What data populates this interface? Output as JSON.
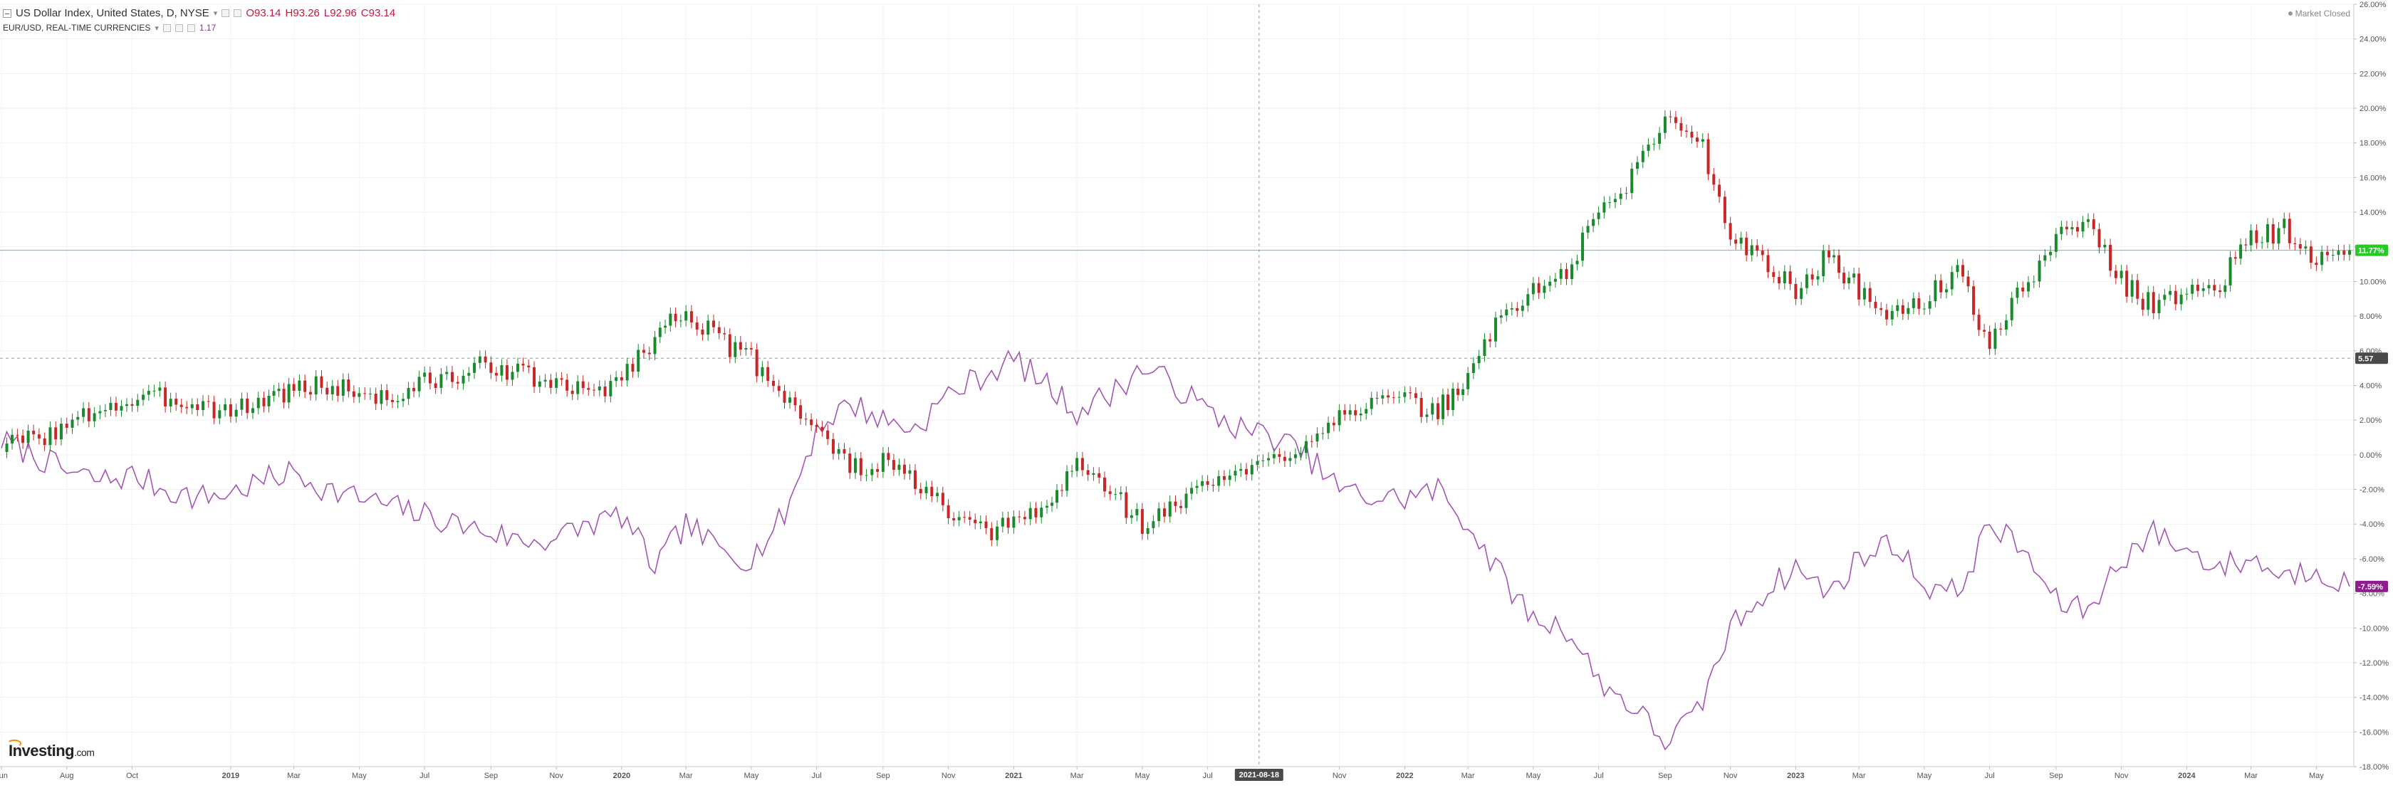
{
  "legend": {
    "main_title": "US Dollar Index, United States, D, NYSE",
    "open_label": "O93.14",
    "high_label": "H93.26",
    "low_label": "L92.96",
    "close_label": "C93.14",
    "second_title": "EUR/USD, REAL-TIME CURRENCIES",
    "second_value": "1.17"
  },
  "status": {
    "market_closed": "Market Closed"
  },
  "branding": {
    "logo_main": "Investing",
    "logo_suffix": ".com"
  },
  "crosshair": {
    "date_label": "2021-08-18",
    "price_label": "5.57"
  },
  "colors": {
    "up_candle": "#1b8a2e",
    "down_candle": "#c62828",
    "eur_line": "#a157b3",
    "last_price_line": "#4cd964",
    "last_price_badge": "#22cc22",
    "eur_badge": "#8e1e8e",
    "crosshair_badge": "#4a4a4a"
  },
  "chart_data": {
    "type": "line",
    "title": "US Dollar Index, United States, D, NYSE",
    "y_axis": {
      "min": -18,
      "max": 26,
      "step": 2,
      "unit": "%",
      "position": "right"
    },
    "x_tick_labels": [
      "Jun",
      "Aug",
      "Oct",
      "2019",
      "Mar",
      "May",
      "Jul",
      "Sep",
      "Nov",
      "2020",
      "Mar",
      "May",
      "Jul",
      "Sep",
      "Nov",
      "2021",
      "Mar",
      "May",
      "Jul",
      "2021-08-18",
      "Nov",
      "2022",
      "Mar",
      "May",
      "Jul",
      "Sep",
      "Nov",
      "2023",
      "Mar",
      "May",
      "Jul",
      "Sep",
      "Nov",
      "2024",
      "Mar",
      "May"
    ],
    "x_range": [
      "2018-06",
      "2024-06"
    ],
    "grid": true,
    "markers": {
      "dxy_last": "11.77%",
      "eur_last": "-7.59%",
      "crosshair_y": 5.57
    },
    "series": [
      {
        "name": "US Dollar Index",
        "style": "candlestick",
        "x": [
          "2018-06",
          "2018-07",
          "2018-08",
          "2018-09",
          "2018-10",
          "2018-11",
          "2018-12",
          "2019-01",
          "2019-02",
          "2019-03",
          "2019-04",
          "2019-05",
          "2019-06",
          "2019-07",
          "2019-08",
          "2019-09",
          "2019-10",
          "2019-11",
          "2019-12",
          "2020-01",
          "2020-02",
          "2020-03",
          "2020-04",
          "2020-05",
          "2020-06",
          "2020-07",
          "2020-08",
          "2020-09",
          "2020-10",
          "2020-11",
          "2020-12",
          "2021-01",
          "2021-02",
          "2021-03",
          "2021-04",
          "2021-05",
          "2021-06",
          "2021-07",
          "2021-08",
          "2021-09",
          "2021-10",
          "2021-11",
          "2021-12",
          "2022-01",
          "2022-02",
          "2022-03",
          "2022-04",
          "2022-05",
          "2022-06",
          "2022-07",
          "2022-08",
          "2022-09",
          "2022-10",
          "2022-11",
          "2022-12",
          "2023-01",
          "2023-02",
          "2023-03",
          "2023-04",
          "2023-05",
          "2023-06",
          "2023-07",
          "2023-08",
          "2023-09",
          "2023-10",
          "2023-11",
          "2023-12",
          "2024-01",
          "2024-02",
          "2024-03",
          "2024-04",
          "2024-05",
          "2024-06"
        ],
        "values": [
          0.5,
          1.0,
          1.5,
          2.8,
          3.0,
          3.3,
          3.0,
          2.5,
          3.2,
          3.8,
          4.0,
          3.6,
          3.2,
          4.2,
          4.5,
          5.3,
          4.6,
          4.0,
          3.5,
          4.5,
          6.8,
          8.5,
          6.5,
          5.5,
          3.5,
          1.5,
          -0.8,
          -0.5,
          -1.5,
          -3.5,
          -4.5,
          -4.0,
          -3.0,
          -0.5,
          -2.0,
          -4.0,
          -3.0,
          -1.5,
          -1.2,
          -0.3,
          0.8,
          2.5,
          3.0,
          3.0,
          2.5,
          4.5,
          8.0,
          9.5,
          10.5,
          14.0,
          16.0,
          19.5,
          18.5,
          13.0,
          11.0,
          9.5,
          11.5,
          9.5,
          8.0,
          9.0,
          10.5,
          6.5,
          9.5,
          12.5,
          13.5,
          10.0,
          8.5,
          9.5,
          10.0,
          12.5,
          13.0,
          11.0,
          11.8
        ]
      },
      {
        "name": "EUR/USD",
        "style": "line",
        "x": [
          "2018-06",
          "2018-07",
          "2018-08",
          "2018-09",
          "2018-10",
          "2018-11",
          "2018-12",
          "2019-01",
          "2019-02",
          "2019-03",
          "2019-04",
          "2019-05",
          "2019-06",
          "2019-07",
          "2019-08",
          "2019-09",
          "2019-10",
          "2019-11",
          "2019-12",
          "2020-01",
          "2020-02",
          "2020-03",
          "2020-04",
          "2020-05",
          "2020-06",
          "2020-07",
          "2020-08",
          "2020-09",
          "2020-10",
          "2020-11",
          "2020-12",
          "2021-01",
          "2021-02",
          "2021-03",
          "2021-04",
          "2021-05",
          "2021-06",
          "2021-07",
          "2021-08",
          "2021-09",
          "2021-10",
          "2021-11",
          "2021-12",
          "2022-01",
          "2022-02",
          "2022-03",
          "2022-04",
          "2022-05",
          "2022-06",
          "2022-07",
          "2022-08",
          "2022-09",
          "2022-10",
          "2022-11",
          "2022-12",
          "2023-01",
          "2023-02",
          "2023-03",
          "2023-04",
          "2023-05",
          "2023-06",
          "2023-07",
          "2023-08",
          "2023-09",
          "2023-10",
          "2023-11",
          "2023-12",
          "2024-01",
          "2024-02",
          "2024-03",
          "2024-04",
          "2024-05",
          "2024-06"
        ],
        "values": [
          0.8,
          0.0,
          -1.0,
          -1.5,
          -1.2,
          -2.0,
          -2.5,
          -2.2,
          -1.5,
          -1.0,
          -2.0,
          -2.5,
          -3.0,
          -3.5,
          -4.0,
          -4.5,
          -5.0,
          -4.8,
          -4.0,
          -3.5,
          -6.5,
          -4.0,
          -5.5,
          -6.0,
          -3.5,
          1.5,
          3.0,
          2.0,
          1.5,
          3.5,
          4.5,
          5.5,
          4.0,
          2.5,
          3.5,
          5.0,
          4.0,
          2.5,
          1.5,
          1.0,
          0.0,
          -2.0,
          -2.5,
          -2.5,
          -2.0,
          -4.0,
          -7.0,
          -9.5,
          -10.0,
          -13.0,
          -14.5,
          -16.5,
          -15.0,
          -10.0,
          -8.0,
          -6.5,
          -8.0,
          -6.0,
          -5.0,
          -7.5,
          -8.0,
          -4.0,
          -5.5,
          -8.5,
          -9.0,
          -6.0,
          -4.5,
          -5.5,
          -6.5,
          -6.0,
          -7.0,
          -6.5,
          -7.6
        ]
      }
    ]
  }
}
